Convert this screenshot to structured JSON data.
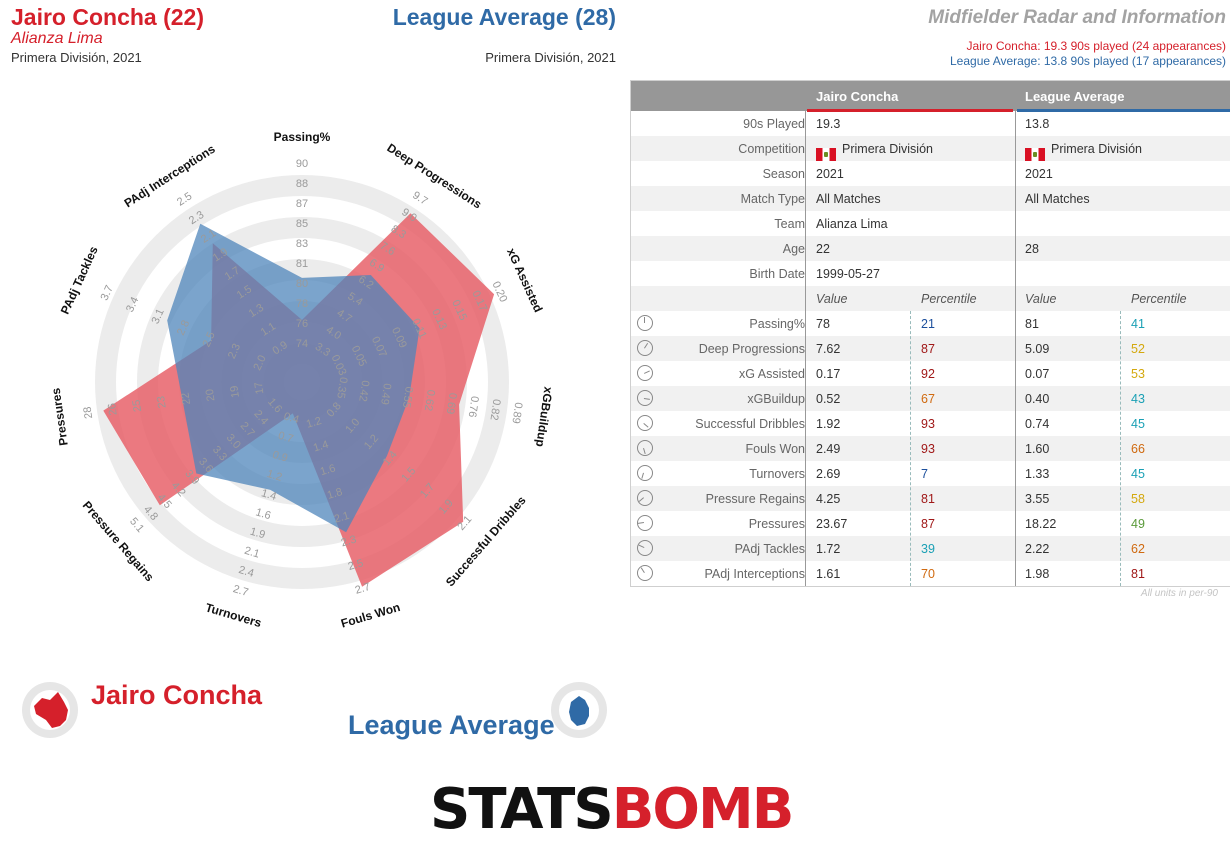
{
  "header": {
    "player_title": "Jairo Concha (22)",
    "player_team": "Alianza Lima",
    "player_comp": "Primera División, 2021",
    "avg_title": "League Average (28)",
    "avg_comp": "Primera División, 2021",
    "right_title": "Midfielder Radar and Information",
    "player_played": "Jairo Concha: 19.3 90s played (24 appearances)",
    "avg_played": "League Average: 13.8 90s played (17 appearances)"
  },
  "colors": {
    "player": "#d5202b",
    "average": "#2f6aa6",
    "player_fill": "#e8616a",
    "average_fill": "#4f86bb"
  },
  "table": {
    "col_player": "Jairo Concha",
    "col_avg": "League Average",
    "info_rows": [
      {
        "label": "90s Played",
        "p": "19.3",
        "a": "13.8"
      },
      {
        "label": "Competition",
        "p": "Primera División",
        "a": "Primera División"
      },
      {
        "label": "Season",
        "p": "2021",
        "a": "2021"
      },
      {
        "label": "Match Type",
        "p": "All Matches",
        "a": "All Matches"
      },
      {
        "label": "Team",
        "p": "Alianza Lima",
        "a": ""
      },
      {
        "label": "Age",
        "p": "22",
        "a": "28"
      },
      {
        "label": "Birth Date",
        "p": "1999-05-27",
        "a": ""
      }
    ],
    "value_header": "Value",
    "percentile_header": "Percentile",
    "metric_rows": [
      {
        "label": "Passing%",
        "pv": "78",
        "pp": "21",
        "av": "81",
        "ap": "41"
      },
      {
        "label": "Deep Progressions",
        "pv": "7.62",
        "pp": "87",
        "av": "5.09",
        "ap": "52"
      },
      {
        "label": "xG Assisted",
        "pv": "0.17",
        "pp": "92",
        "av": "0.07",
        "ap": "53"
      },
      {
        "label": "xGBuildup",
        "pv": "0.52",
        "pp": "67",
        "av": "0.40",
        "ap": "43"
      },
      {
        "label": "Successful Dribbles",
        "pv": "1.92",
        "pp": "93",
        "av": "0.74",
        "ap": "45"
      },
      {
        "label": "Fouls Won",
        "pv": "2.49",
        "pp": "93",
        "av": "1.60",
        "ap": "66"
      },
      {
        "label": "Turnovers",
        "pv": "2.69",
        "pp": "7",
        "av": "1.33",
        "ap": "45"
      },
      {
        "label": "Pressure Regains",
        "pv": "4.25",
        "pp": "81",
        "av": "3.55",
        "ap": "58"
      },
      {
        "label": "Pressures",
        "pv": "23.67",
        "pp": "87",
        "av": "18.22",
        "ap": "49"
      },
      {
        "label": "PAdj Tackles",
        "pv": "1.72",
        "pp": "39",
        "av": "2.22",
        "ap": "62"
      },
      {
        "label": "PAdj Interceptions",
        "pv": "1.61",
        "pp": "70",
        "av": "1.98",
        "ap": "81"
      }
    ],
    "units_note": "All units in per-90"
  },
  "legend": {
    "player": "Jairo Concha",
    "average": "League Average"
  },
  "logo": {
    "left": "STATS",
    "right": "BOMB"
  },
  "chart_data": {
    "type": "radar",
    "title": "",
    "axes": [
      "Passing%",
      "Deep Progressions",
      "xG Assisted",
      "xGBuildup",
      "Successful Dribbles",
      "Fouls Won",
      "Turnovers",
      "Pressure Regains",
      "Pressures",
      "PAdj Tackles",
      "PAdj Interceptions"
    ],
    "tick_labels": [
      [
        "74",
        "76",
        "78",
        "80",
        "81",
        "83",
        "85",
        "87",
        "88",
        "90"
      ],
      [
        "3.3",
        "4.0",
        "4.7",
        "5.4",
        "6.2",
        "6.9",
        "7.6",
        "8.3",
        "9.0",
        "9.7"
      ],
      [
        "0.03",
        "0.05",
        "0.07",
        "0.09",
        "0.11",
        "0.13",
        "0.15",
        "0.17",
        "0.20"
      ],
      [
        "0.35",
        "0.42",
        "0.49",
        "0.55",
        "0.62",
        "0.69",
        "0.76",
        "0.82",
        "0.89"
      ],
      [
        "0.8",
        "1.0",
        "1.2",
        "1.4",
        "1.5",
        "1.7",
        "1.9",
        "2.1"
      ],
      [
        "1.2",
        "1.4",
        "1.6",
        "1.8",
        "2.1",
        "2.3",
        "2.5",
        "2.7"
      ],
      [
        "0.4",
        "0.7",
        "0.9",
        "1.2",
        "1.4",
        "1.6",
        "1.9",
        "2.1",
        "2.4",
        "2.7"
      ],
      [
        "1.6",
        "2.4",
        "2.7",
        "3.0",
        "3.3",
        "3.6",
        "3.9",
        "4.2",
        "4.5",
        "4.8",
        "5.1"
      ],
      [
        "17",
        "19",
        "20",
        "22",
        "23",
        "25",
        "26",
        "28"
      ],
      [
        "2.0",
        "2.3",
        "2.5",
        "2.8",
        "3.1",
        "3.4",
        "3.7"
      ],
      [
        "0.9",
        "1.1",
        "1.3",
        "1.5",
        "1.7",
        "1.9",
        "2.1",
        "2.3",
        "2.5"
      ]
    ],
    "series": [
      {
        "name": "Jairo Concha",
        "values": [
          78,
          7.62,
          0.17,
          0.52,
          1.92,
          2.49,
          2.69,
          4.25,
          23.67,
          1.72,
          1.61
        ]
      },
      {
        "name": "League Average",
        "values": [
          81,
          5.09,
          0.07,
          0.4,
          0.74,
          1.6,
          1.33,
          3.55,
          18.22,
          2.22,
          1.98
        ]
      }
    ],
    "percentiles": [
      {
        "name": "Jairo Concha",
        "values": [
          21,
          87,
          92,
          67,
          93,
          93,
          7,
          81,
          87,
          39,
          70
        ]
      },
      {
        "name": "League Average",
        "values": [
          41,
          52,
          53,
          43,
          45,
          66,
          45,
          58,
          49,
          62,
          81
        ]
      }
    ]
  }
}
